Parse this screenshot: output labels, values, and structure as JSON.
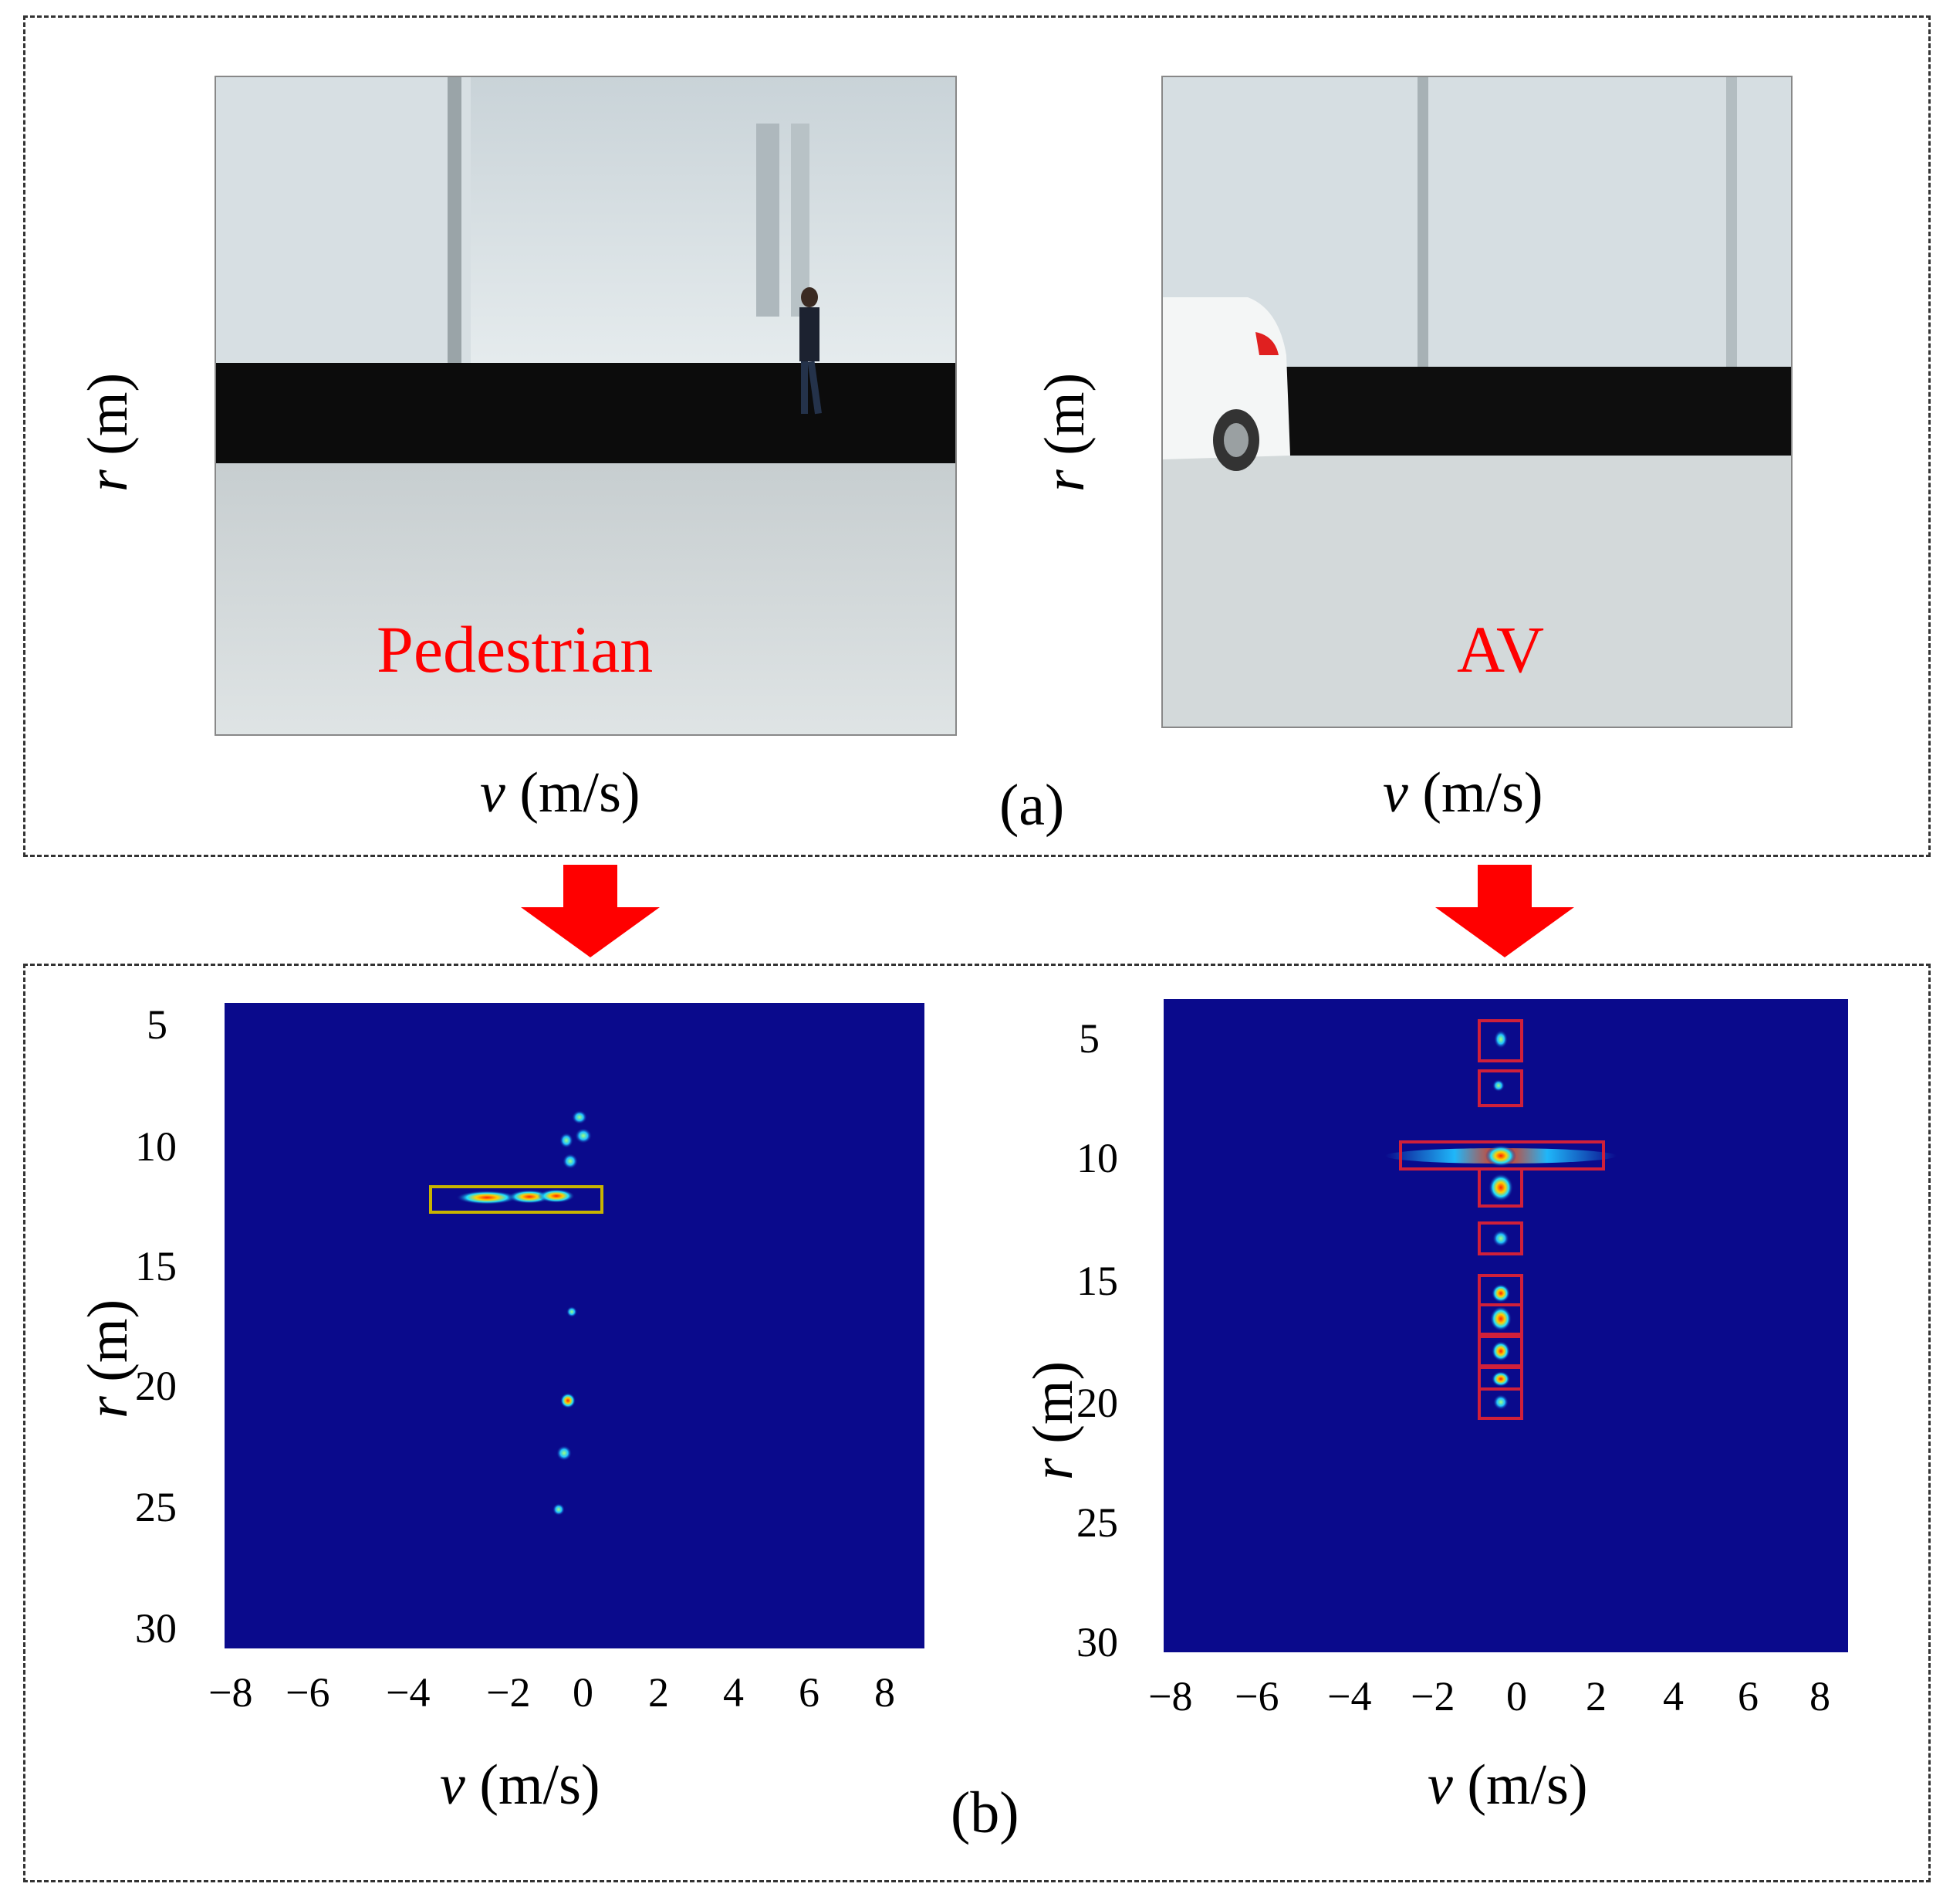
{
  "panel_a": {
    "letter": "(a)",
    "left": {
      "object_label": "Pedestrian",
      "y_axis_label": "r",
      "y_axis_unit": "(m)",
      "x_axis_label": "v",
      "x_axis_unit": "(m/s)"
    },
    "right": {
      "object_label": "AV",
      "y_axis_label": "r",
      "y_axis_unit": "(m)",
      "x_axis_label": "v",
      "x_axis_unit": "(m/s)"
    }
  },
  "panel_b": {
    "letter": "(b)",
    "left": {
      "y_axis_label": "r",
      "y_axis_unit": "(m)",
      "x_axis_label": "v",
      "x_axis_unit": "(m/s)",
      "y_ticks": [
        "5",
        "10",
        "15",
        "20",
        "25",
        "30"
      ],
      "x_ticks": [
        "−8",
        "−6",
        "−4",
        "−2",
        "0",
        "2",
        "4",
        "6",
        "8"
      ],
      "box_color": "#c8b400"
    },
    "right": {
      "y_axis_label": "r",
      "y_axis_unit": "(m)",
      "x_axis_label": "v",
      "x_axis_unit": "(m/s)",
      "y_ticks": [
        "5",
        "10",
        "15",
        "20",
        "25",
        "30"
      ],
      "x_ticks": [
        "−8",
        "−6",
        "−4",
        "−2",
        "0",
        "2",
        "4",
        "6",
        "8"
      ],
      "box_color": "#d0203a"
    }
  },
  "colors": {
    "background_map": "#0a0a8c",
    "arrow": "#ff0000",
    "label": "#ff0000"
  }
}
